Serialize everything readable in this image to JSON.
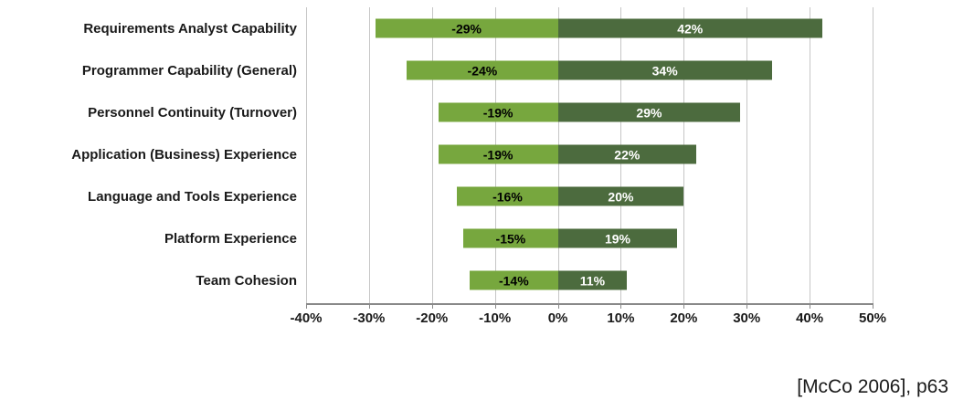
{
  "chart_data": {
    "type": "bar",
    "orientation": "horizontal-diverging",
    "title": "",
    "categories": [
      "Requirements Analyst Capability",
      "Programmer Capability (General)",
      "Personnel Continuity (Turnover)",
      "Application (Business) Experience",
      "Language and Tools Experience",
      "Platform Experience",
      "Team Cohesion"
    ],
    "series": [
      {
        "name": "decrease",
        "values": [
          -29,
          -24,
          -19,
          -19,
          -16,
          -15,
          -14
        ],
        "color": "#77a73e",
        "label_color": "#000000"
      },
      {
        "name": "increase",
        "values": [
          42,
          34,
          29,
          22,
          20,
          19,
          11
        ],
        "color": "#4c6b3e",
        "label_color": "#ffffff"
      }
    ],
    "x_ticks": [
      "-40%",
      "-30%",
      "-20%",
      "-10%",
      "0%",
      "10%",
      "20%",
      "30%",
      "40%",
      "50%"
    ],
    "xlim": [
      -40,
      50
    ],
    "grid": true,
    "legend": "none",
    "value_suffix": "%"
  },
  "citation": "[McCo 2006], p63"
}
